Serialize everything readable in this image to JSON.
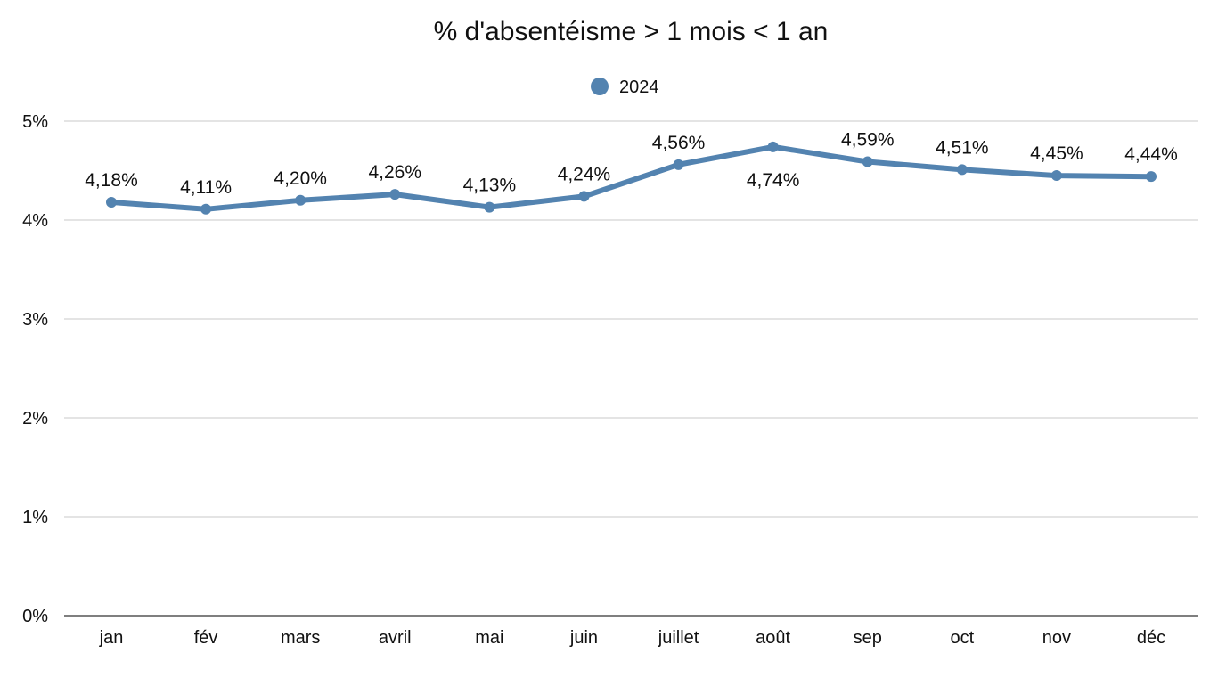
{
  "chart_data": {
    "type": "line",
    "title": "% d'absentéisme > 1 mois < 1 an",
    "xlabel": "",
    "ylabel": "",
    "categories": [
      "jan",
      "fév",
      "mars",
      "avril",
      "mai",
      "juin",
      "juillet",
      "août",
      "sep",
      "oct",
      "nov",
      "déc"
    ],
    "series": [
      {
        "name": "2024",
        "color": "#5383b0",
        "values": [
          4.18,
          4.11,
          4.2,
          4.26,
          4.13,
          4.24,
          4.56,
          4.74,
          4.59,
          4.51,
          4.45,
          4.44
        ],
        "labels": [
          "4,18%",
          "4,11%",
          "4,20%",
          "4,26%",
          "4,13%",
          "4,24%",
          "4,56%",
          "4,74%",
          "4,59%",
          "4,51%",
          "4,45%",
          "4,44%"
        ],
        "label_positions": [
          "above",
          "above",
          "above",
          "above",
          "above",
          "above",
          "above",
          "below",
          "above",
          "above",
          "above",
          "above"
        ]
      }
    ],
    "y_ticks": [
      0,
      1,
      2,
      3,
      4,
      5
    ],
    "y_tick_labels": [
      "0%",
      "1%",
      "2%",
      "3%",
      "4%",
      "5%"
    ],
    "ylim": [
      0,
      5
    ],
    "grid": true,
    "legend_position": "top-center"
  }
}
